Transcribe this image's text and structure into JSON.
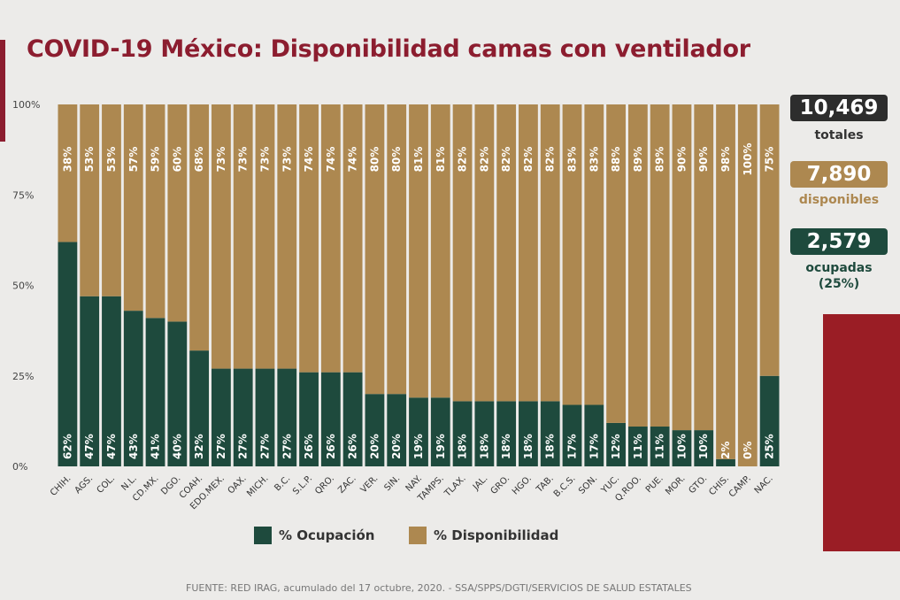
{
  "title": "COVID-19 México: Disponibilidad camas con ventilador",
  "colors": {
    "ocupacion": "#1e4a3d",
    "disponibilidad": "#ad8850",
    "title": "#8c1d2f",
    "totales": "#2d2d2d"
  },
  "summary": {
    "totales_value": "10,469",
    "totales_label": "totales",
    "disponibles_value": "7,890",
    "disponibles_label": "disponibles",
    "ocupadas_value": "2,579",
    "ocupadas_label": "ocupadas",
    "ocupadas_pct": "(25%)"
  },
  "legend": {
    "ocupacion": "% Ocupación",
    "disponibilidad": "% Disponibilidad"
  },
  "source": "FUENTE: RED IRAG, acumulado del 17 octubre, 2020. -  SSA/SPPS/DGTI/SERVICIOS DE SALUD ESTATALES",
  "chart_data": {
    "type": "bar",
    "stacked": true,
    "ylim": [
      0,
      100
    ],
    "yticks": [
      "0%",
      "25%",
      "50%",
      "75%",
      "100%"
    ],
    "categories": [
      "CHIH.",
      "AGS.",
      "COL.",
      "N.L.",
      "CD.MX.",
      "DGO.",
      "COAH.",
      "EDO.MEX.",
      "OAX.",
      "MICH.",
      "B.C.",
      "S.L.P.",
      "QRO.",
      "ZAC.",
      "VER.",
      "SIN.",
      "NAY.",
      "TAMPS.",
      "TLAX.",
      "JAL.",
      "GRO.",
      "HGO.",
      "TAB.",
      "B.C.S.",
      "SON.",
      "YUC.",
      "Q.ROO.",
      "PUE.",
      "MOR.",
      "GTO.",
      "CHIS.",
      "CAMP.",
      "NAC."
    ],
    "series": [
      {
        "name": "% Ocupación",
        "values": [
          62,
          47,
          47,
          43,
          41,
          40,
          32,
          27,
          27,
          27,
          27,
          26,
          26,
          26,
          20,
          20,
          19,
          19,
          18,
          18,
          18,
          18,
          18,
          17,
          17,
          12,
          11,
          11,
          10,
          10,
          2,
          0,
          25
        ]
      },
      {
        "name": "% Disponibilidad",
        "values": [
          38,
          53,
          53,
          57,
          59,
          60,
          68,
          73,
          73,
          73,
          73,
          74,
          74,
          74,
          80,
          80,
          81,
          81,
          82,
          82,
          82,
          82,
          82,
          83,
          83,
          88,
          89,
          89,
          90,
          90,
          98,
          100,
          75
        ]
      }
    ]
  }
}
